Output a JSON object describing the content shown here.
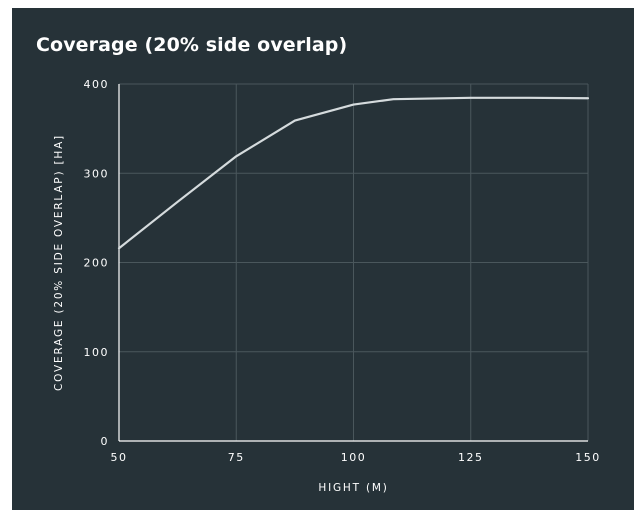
{
  "chart_data": {
    "type": "line",
    "title": "Coverage (20% side overlap)",
    "xlabel": "HIGHT (M)",
    "ylabel": "COVERAGE (20% SIDE OVERLAP) [HA]",
    "xlim": [
      50,
      150
    ],
    "ylim": [
      0,
      400
    ],
    "x_ticks": [
      50,
      75,
      100,
      125,
      150
    ],
    "y_ticks": [
      0,
      100,
      200,
      300,
      400
    ],
    "grid": true,
    "series": [
      {
        "x": [
          50,
          62.5,
          75,
          87.5,
          100,
          108.5,
          125,
          137.5,
          150
        ],
        "values": [
          216,
          268,
          319,
          359,
          377,
          383,
          384.5,
          384.5,
          384
        ]
      }
    ]
  },
  "colors": {
    "background": "#263238",
    "line": "#d5dbdd",
    "grid": "#4a575c",
    "axis": "#ffffff",
    "text": "#ffffff"
  }
}
